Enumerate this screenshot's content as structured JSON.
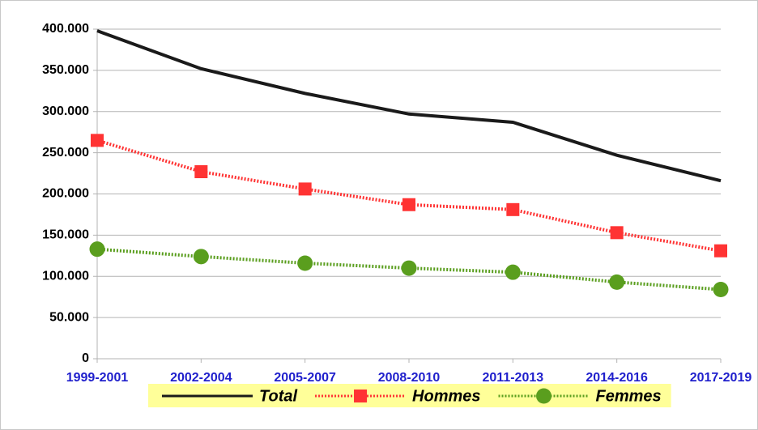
{
  "chart_data": {
    "type": "line",
    "categories": [
      "1999-2001",
      "2002-2004",
      "2005-2007",
      "2008-2010",
      "2011-2013",
      "2014-2016",
      "2017-2019"
    ],
    "series": [
      {
        "name": "Total",
        "color": "#1a1a1a",
        "line_style": "solid",
        "marker": "none",
        "values": [
          398000,
          352000,
          322000,
          297000,
          287000,
          247000,
          216000
        ]
      },
      {
        "name": "Hommes",
        "color": "#ff3333",
        "line_style": "dotted",
        "marker": "square",
        "values": [
          265000,
          227000,
          206000,
          187000,
          181000,
          153000,
          131000
        ]
      },
      {
        "name": "Femmes",
        "color": "#5a9e1e",
        "line_style": "dotted",
        "marker": "circle",
        "values": [
          133000,
          124000,
          116000,
          110000,
          105000,
          93000,
          84000
        ]
      }
    ],
    "ylim": [
      0,
      400000
    ],
    "yticks": [
      0,
      {
        "value": 50000,
        "label": "50.000"
      },
      {
        "value": 100000,
        "label": "100.000"
      },
      {
        "value": 150000,
        "label": "150.000"
      },
      {
        "value": 200000,
        "label": "200.000"
      },
      {
        "value": 250000,
        "label": "250.000"
      },
      {
        "value": 300000,
        "label": "300.000"
      },
      {
        "value": 350000,
        "label": "350.000"
      },
      {
        "value": 400000,
        "label": "400.000"
      }
    ],
    "grid": true,
    "legend": "bottom",
    "legend_background": "#ffff99",
    "category_label_color": "#1f1fcc"
  }
}
